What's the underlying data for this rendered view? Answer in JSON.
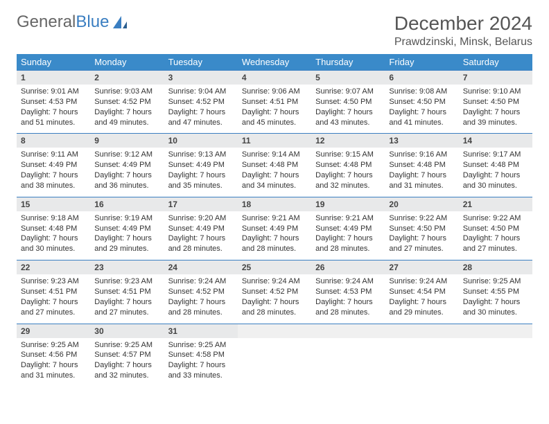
{
  "brand": {
    "part1": "General",
    "part2": "Blue"
  },
  "title": "December 2024",
  "location": "Prawdzinski, Minsk, Belarus",
  "colors": {
    "header_bg": "#3a8ac9",
    "header_text": "#ffffff",
    "daynum_bg": "#e8e9ea",
    "border": "#3a7ec1",
    "brand_gray": "#666666",
    "brand_blue": "#3a7ec1",
    "text": "#333333"
  },
  "calendar": {
    "columns": [
      "Sunday",
      "Monday",
      "Tuesday",
      "Wednesday",
      "Thursday",
      "Friday",
      "Saturday"
    ],
    "weeks": [
      [
        {
          "day": "1",
          "sunrise": "9:01 AM",
          "sunset": "4:53 PM",
          "daylight_h": "7",
          "daylight_m": "51"
        },
        {
          "day": "2",
          "sunrise": "9:03 AM",
          "sunset": "4:52 PM",
          "daylight_h": "7",
          "daylight_m": "49"
        },
        {
          "day": "3",
          "sunrise": "9:04 AM",
          "sunset": "4:52 PM",
          "daylight_h": "7",
          "daylight_m": "47"
        },
        {
          "day": "4",
          "sunrise": "9:06 AM",
          "sunset": "4:51 PM",
          "daylight_h": "7",
          "daylight_m": "45"
        },
        {
          "day": "5",
          "sunrise": "9:07 AM",
          "sunset": "4:50 PM",
          "daylight_h": "7",
          "daylight_m": "43"
        },
        {
          "day": "6",
          "sunrise": "9:08 AM",
          "sunset": "4:50 PM",
          "daylight_h": "7",
          "daylight_m": "41"
        },
        {
          "day": "7",
          "sunrise": "9:10 AM",
          "sunset": "4:50 PM",
          "daylight_h": "7",
          "daylight_m": "39"
        }
      ],
      [
        {
          "day": "8",
          "sunrise": "9:11 AM",
          "sunset": "4:49 PM",
          "daylight_h": "7",
          "daylight_m": "38"
        },
        {
          "day": "9",
          "sunrise": "9:12 AM",
          "sunset": "4:49 PM",
          "daylight_h": "7",
          "daylight_m": "36"
        },
        {
          "day": "10",
          "sunrise": "9:13 AM",
          "sunset": "4:49 PM",
          "daylight_h": "7",
          "daylight_m": "35"
        },
        {
          "day": "11",
          "sunrise": "9:14 AM",
          "sunset": "4:48 PM",
          "daylight_h": "7",
          "daylight_m": "34"
        },
        {
          "day": "12",
          "sunrise": "9:15 AM",
          "sunset": "4:48 PM",
          "daylight_h": "7",
          "daylight_m": "32"
        },
        {
          "day": "13",
          "sunrise": "9:16 AM",
          "sunset": "4:48 PM",
          "daylight_h": "7",
          "daylight_m": "31"
        },
        {
          "day": "14",
          "sunrise": "9:17 AM",
          "sunset": "4:48 PM",
          "daylight_h": "7",
          "daylight_m": "30"
        }
      ],
      [
        {
          "day": "15",
          "sunrise": "9:18 AM",
          "sunset": "4:48 PM",
          "daylight_h": "7",
          "daylight_m": "30"
        },
        {
          "day": "16",
          "sunrise": "9:19 AM",
          "sunset": "4:49 PM",
          "daylight_h": "7",
          "daylight_m": "29"
        },
        {
          "day": "17",
          "sunrise": "9:20 AM",
          "sunset": "4:49 PM",
          "daylight_h": "7",
          "daylight_m": "28"
        },
        {
          "day": "18",
          "sunrise": "9:21 AM",
          "sunset": "4:49 PM",
          "daylight_h": "7",
          "daylight_m": "28"
        },
        {
          "day": "19",
          "sunrise": "9:21 AM",
          "sunset": "4:49 PM",
          "daylight_h": "7",
          "daylight_m": "28"
        },
        {
          "day": "20",
          "sunrise": "9:22 AM",
          "sunset": "4:50 PM",
          "daylight_h": "7",
          "daylight_m": "27"
        },
        {
          "day": "21",
          "sunrise": "9:22 AM",
          "sunset": "4:50 PM",
          "daylight_h": "7",
          "daylight_m": "27"
        }
      ],
      [
        {
          "day": "22",
          "sunrise": "9:23 AM",
          "sunset": "4:51 PM",
          "daylight_h": "7",
          "daylight_m": "27"
        },
        {
          "day": "23",
          "sunrise": "9:23 AM",
          "sunset": "4:51 PM",
          "daylight_h": "7",
          "daylight_m": "27"
        },
        {
          "day": "24",
          "sunrise": "9:24 AM",
          "sunset": "4:52 PM",
          "daylight_h": "7",
          "daylight_m": "28"
        },
        {
          "day": "25",
          "sunrise": "9:24 AM",
          "sunset": "4:52 PM",
          "daylight_h": "7",
          "daylight_m": "28"
        },
        {
          "day": "26",
          "sunrise": "9:24 AM",
          "sunset": "4:53 PM",
          "daylight_h": "7",
          "daylight_m": "28"
        },
        {
          "day": "27",
          "sunrise": "9:24 AM",
          "sunset": "4:54 PM",
          "daylight_h": "7",
          "daylight_m": "29"
        },
        {
          "day": "28",
          "sunrise": "9:25 AM",
          "sunset": "4:55 PM",
          "daylight_h": "7",
          "daylight_m": "30"
        }
      ],
      [
        {
          "day": "29",
          "sunrise": "9:25 AM",
          "sunset": "4:56 PM",
          "daylight_h": "7",
          "daylight_m": "31"
        },
        {
          "day": "30",
          "sunrise": "9:25 AM",
          "sunset": "4:57 PM",
          "daylight_h": "7",
          "daylight_m": "32"
        },
        {
          "day": "31",
          "sunrise": "9:25 AM",
          "sunset": "4:58 PM",
          "daylight_h": "7",
          "daylight_m": "33"
        },
        null,
        null,
        null,
        null
      ]
    ]
  },
  "labels": {
    "sunrise": "Sunrise:",
    "sunset": "Sunset:",
    "daylight": "Daylight:",
    "hours": "hours",
    "and": "and",
    "minutes": "minutes."
  }
}
